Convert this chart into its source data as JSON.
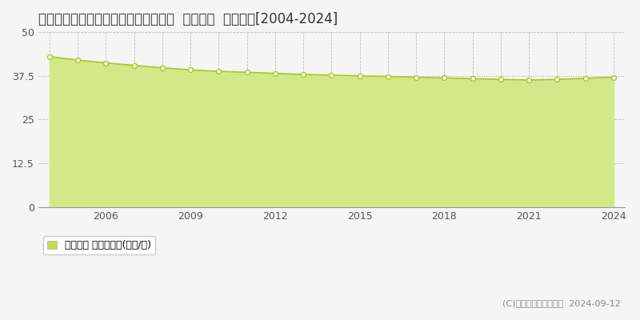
{
  "title": "愛知県知多市にしの台４丁目７番３外  地価公示  地価推移[2004-2024]",
  "years": [
    2004,
    2005,
    2006,
    2007,
    2008,
    2009,
    2010,
    2011,
    2012,
    2013,
    2014,
    2015,
    2016,
    2017,
    2018,
    2019,
    2020,
    2021,
    2022,
    2023,
    2024
  ],
  "values": [
    43.0,
    42.0,
    41.2,
    40.5,
    39.8,
    39.2,
    38.8,
    38.5,
    38.2,
    37.9,
    37.7,
    37.5,
    37.3,
    37.1,
    36.9,
    36.7,
    36.5,
    36.3,
    36.5,
    36.8,
    37.1
  ],
  "line_color": "#a8c820",
  "fill_color": "#d4e88a",
  "marker_color": "#ffffff",
  "marker_edge_color": "#a8c820",
  "background_color": "#f5f5f5",
  "plot_bg_color": "#f5f5f5",
  "grid_color_dash": "#bbbbbb",
  "grid_color_dot": "#bbbbbb",
  "yticks": [
    0,
    12.5,
    25,
    37.5,
    50
  ],
  "ylim": [
    0,
    50
  ],
  "xlim": [
    2003.6,
    2024.4
  ],
  "xticks": [
    2006,
    2009,
    2012,
    2015,
    2018,
    2021,
    2024
  ],
  "legend_label": "地価公示 平均坪単価(万円/坪)",
  "legend_color": "#c8dc50",
  "copyright_text": "(C)土地価格ドットコム  2024-09-12",
  "title_fontsize": 12,
  "tick_fontsize": 9,
  "legend_fontsize": 9,
  "copyright_fontsize": 8
}
